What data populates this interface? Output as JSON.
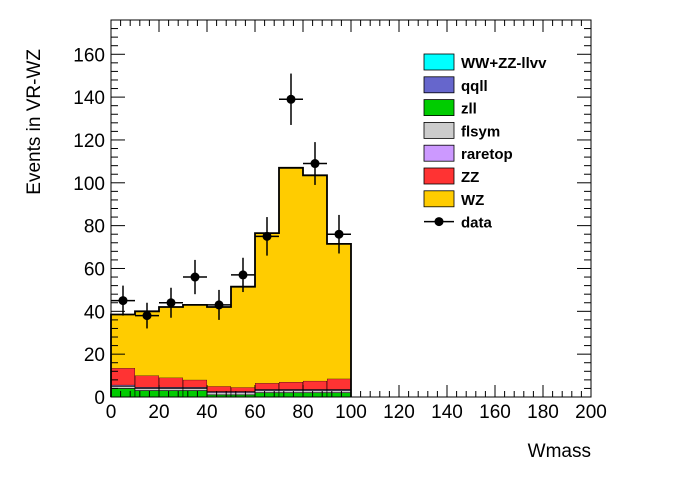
{
  "chart_data": {
    "type": "bar",
    "stacked": true,
    "xlabel": "Wmass",
    "ylabel": "Events in VR-WZ",
    "xlim": [
      0,
      200
    ],
    "ylim": [
      0,
      176
    ],
    "bin_edges": [
      0,
      10,
      20,
      30,
      40,
      50,
      60,
      70,
      80,
      90,
      100
    ],
    "x_ticks": [
      "0",
      "20",
      "40",
      "60",
      "80",
      "100",
      "120",
      "140",
      "160",
      "180",
      "200"
    ],
    "y_ticks": [
      "0",
      "20",
      "40",
      "60",
      "80",
      "100",
      "120",
      "140",
      "160"
    ],
    "legend_position": "top-right",
    "series": [
      {
        "name": "WW+ZZ-llvv",
        "color": "#00ffff",
        "values": [
          0,
          0,
          0,
          0,
          0,
          0,
          0,
          0,
          0,
          0
        ]
      },
      {
        "name": "qqll",
        "color": "#6666cc",
        "values": [
          0,
          0,
          0,
          0,
          0,
          0,
          0,
          0,
          0,
          0
        ]
      },
      {
        "name": "zll",
        "color": "#00cc00",
        "values": [
          4,
          3,
          3,
          3,
          1,
          1,
          2,
          2,
          2,
          2
        ]
      },
      {
        "name": "flsym",
        "color": "#cccccc",
        "values": [
          1,
          1,
          1,
          1,
          1,
          1,
          1,
          1,
          1,
          1
        ]
      },
      {
        "name": "raretop",
        "color": "#cc99ff",
        "values": [
          0.5,
          0.5,
          0.5,
          0.5,
          0.5,
          0.5,
          0.5,
          0.5,
          0.5,
          0.5
        ]
      },
      {
        "name": "ZZ",
        "color": "#ff3333",
        "values": [
          8,
          5.5,
          4.5,
          3.5,
          2.5,
          2,
          3,
          3.5,
          4,
          5
        ]
      },
      {
        "name": "WZ",
        "color": "#ffcc00",
        "values": [
          25,
          30,
          33,
          35,
          37,
          47,
          70,
          100,
          96,
          63
        ]
      }
    ],
    "data": {
      "name": "data",
      "x": [
        5,
        15,
        25,
        35,
        45,
        55,
        65,
        75,
        85,
        95
      ],
      "y": [
        45,
        38,
        44,
        56,
        43,
        57,
        75,
        139,
        109,
        76
      ],
      "yerr": [
        7,
        6,
        7,
        8,
        7,
        8,
        9,
        12,
        10,
        9
      ]
    }
  }
}
